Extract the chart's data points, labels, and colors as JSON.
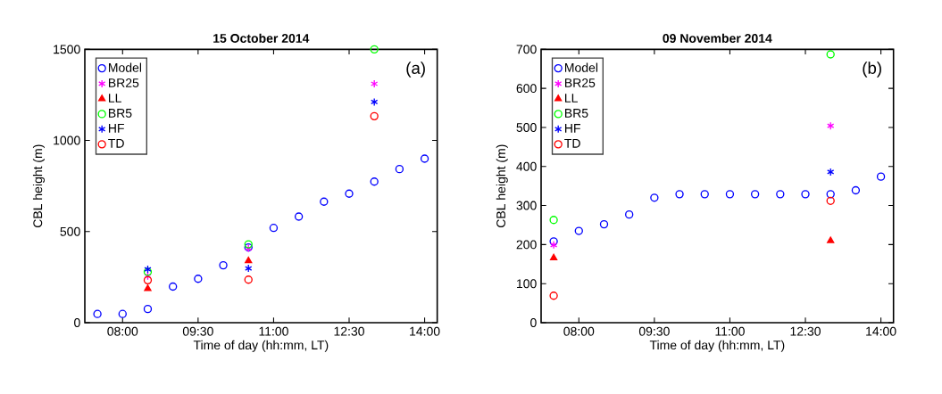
{
  "chart_data": [
    {
      "type": "scatter",
      "title": "15 October 2014",
      "xlabel": "Time of day (hh:mm, LT)",
      "ylabel": "CBL height (m)",
      "annotations": [
        "(a)"
      ],
      "xlim": [
        7.25,
        14.25
      ],
      "xticks": [
        {
          "value": 8,
          "label": "08:00"
        },
        {
          "value": 9.5,
          "label": "09:30"
        },
        {
          "value": 11,
          "label": "11:00"
        },
        {
          "value": 12.5,
          "label": "12:30"
        },
        {
          "value": 14,
          "label": "14:00"
        }
      ],
      "ylim": [
        0,
        1500
      ],
      "yticks": [
        0,
        500,
        1000,
        1500
      ],
      "grid": false,
      "legend": "top left",
      "series": [
        {
          "name": "Model",
          "color": "#0000ff",
          "marker": "circle",
          "x": [
            7.5,
            8,
            8.5,
            9,
            9.5,
            10,
            10.5,
            11,
            11.5,
            12,
            12.5,
            13,
            13.5,
            14
          ],
          "values": [
            48,
            48,
            75,
            198,
            241,
            315,
            413,
            520,
            582,
            664,
            708,
            774,
            843,
            900
          ]
        },
        {
          "name": "BR25",
          "color": "#ff00ff",
          "marker": "cross",
          "x": [
            8.5,
            10.5,
            13
          ],
          "values": [
            256,
            408,
            1311
          ]
        },
        {
          "name": "LL",
          "color": "#ff0000",
          "marker": "triangle",
          "x": [
            8.5,
            10.5
          ],
          "values": [
            187,
            339
          ]
        },
        {
          "name": "BR5",
          "color": "#00ff00",
          "marker": "circle",
          "x": [
            8.5,
            10.5,
            13
          ],
          "values": [
            279,
            430,
            1500
          ]
        },
        {
          "name": "HF",
          "color": "#0000ff",
          "marker": "cross",
          "x": [
            8.5,
            10.5,
            13
          ],
          "values": [
            293,
            298,
            1211
          ]
        },
        {
          "name": "TD",
          "color": "#ff0000",
          "marker": "circle",
          "x": [
            8.5,
            10.5,
            13
          ],
          "values": [
            233,
            236,
            1133
          ]
        }
      ]
    },
    {
      "type": "scatter",
      "title": "09 November 2014",
      "xlabel": "Time of day (hh:mm, LT)",
      "ylabel": "CBL height (m)",
      "annotations": [
        "(b)"
      ],
      "xlim": [
        7.25,
        14.25
      ],
      "xticks": [
        {
          "value": 8,
          "label": "08:00"
        },
        {
          "value": 9.5,
          "label": "09:30"
        },
        {
          "value": 11,
          "label": "11:00"
        },
        {
          "value": 12.5,
          "label": "12:30"
        },
        {
          "value": 14,
          "label": "14:00"
        }
      ],
      "ylim": [
        0,
        700
      ],
      "yticks": [
        0,
        100,
        200,
        300,
        400,
        500,
        600,
        700
      ],
      "grid": false,
      "legend": "top left",
      "series": [
        {
          "name": "Model",
          "color": "#0000ff",
          "marker": "circle",
          "x": [
            7.5,
            8,
            8.5,
            9,
            9.5,
            10,
            10.5,
            11,
            11.5,
            12,
            12.5,
            13,
            13.5,
            14
          ],
          "values": [
            208,
            235,
            252,
            277,
            320,
            329,
            329,
            329,
            329,
            329,
            329,
            329,
            339,
            374
          ]
        },
        {
          "name": "BR25",
          "color": "#ff00ff",
          "marker": "cross",
          "x": [
            7.5,
            13
          ],
          "values": [
            199,
            504
          ]
        },
        {
          "name": "LL",
          "color": "#ff0000",
          "marker": "triangle",
          "x": [
            7.5,
            13
          ],
          "values": [
            166,
            210
          ]
        },
        {
          "name": "BR5",
          "color": "#00ff00",
          "marker": "circle",
          "x": [
            7.5,
            13
          ],
          "values": [
            263,
            687
          ]
        },
        {
          "name": "HF",
          "color": "#0000ff",
          "marker": "cross",
          "x": [
            13
          ],
          "values": [
            386
          ]
        },
        {
          "name": "TD",
          "color": "#ff0000",
          "marker": "circle",
          "x": [
            7.5,
            13
          ],
          "values": [
            69,
            312
          ]
        }
      ]
    }
  ]
}
